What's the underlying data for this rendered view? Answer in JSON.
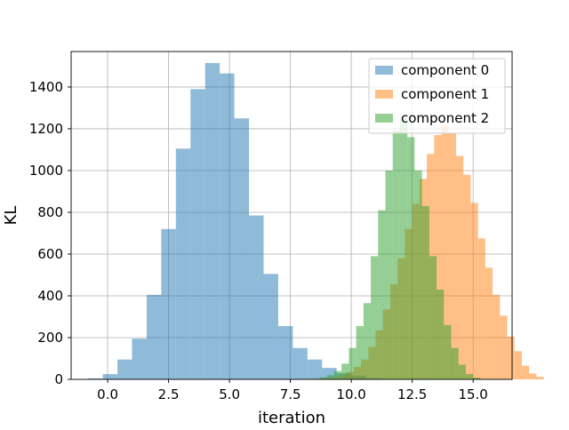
{
  "chart_data": {
    "type": "bar",
    "subtype": "overlapping-histogram",
    "xlabel": "iteration",
    "ylabel": "KL",
    "xlim": [
      -1.5,
      16.6
    ],
    "ylim": [
      0,
      1570
    ],
    "x_ticks": [
      0.0,
      2.5,
      5.0,
      7.5,
      10.0,
      12.5,
      15.0
    ],
    "x_tick_labels": [
      "0.0",
      "2.5",
      "5.0",
      "7.5",
      "10.0",
      "12.5",
      "15.0"
    ],
    "y_ticks": [
      0,
      200,
      400,
      600,
      800,
      1000,
      1200,
      1400
    ],
    "y_tick_labels": [
      "0",
      "200",
      "400",
      "600",
      "800",
      "1000",
      "1200",
      "1400"
    ],
    "grid": true,
    "legend_position": "top-right",
    "alpha": 0.5,
    "series": [
      {
        "name": "component 0",
        "color": "#1f77b4",
        "bin_start": -0.8,
        "bin_width": 0.6,
        "values": [
          5,
          25,
          95,
          195,
          405,
          720,
          1105,
          1390,
          1515,
          1465,
          1250,
          785,
          505,
          255,
          150,
          95,
          55,
          30,
          18,
          5
        ]
      },
      {
        "name": "component 1",
        "color": "#ff7f0e",
        "bin_start": 8.6,
        "bin_width": 0.3,
        "values": [
          3,
          5,
          10,
          20,
          35,
          60,
          95,
          155,
          235,
          335,
          455,
          580,
          720,
          840,
          960,
          1080,
          1170,
          1215,
          1180,
          1070,
          980,
          845,
          675,
          535,
          405,
          305,
          205,
          135,
          65,
          28,
          12
        ]
      },
      {
        "name": "component 2",
        "color": "#2ca02c",
        "bin_start": 8.4,
        "bin_width": 0.3,
        "values": [
          3,
          10,
          20,
          40,
          75,
          150,
          255,
          365,
          590,
          810,
          1000,
          1190,
          1250,
          1160,
          1000,
          830,
          590,
          430,
          260,
          150,
          70,
          25,
          8
        ]
      }
    ]
  }
}
